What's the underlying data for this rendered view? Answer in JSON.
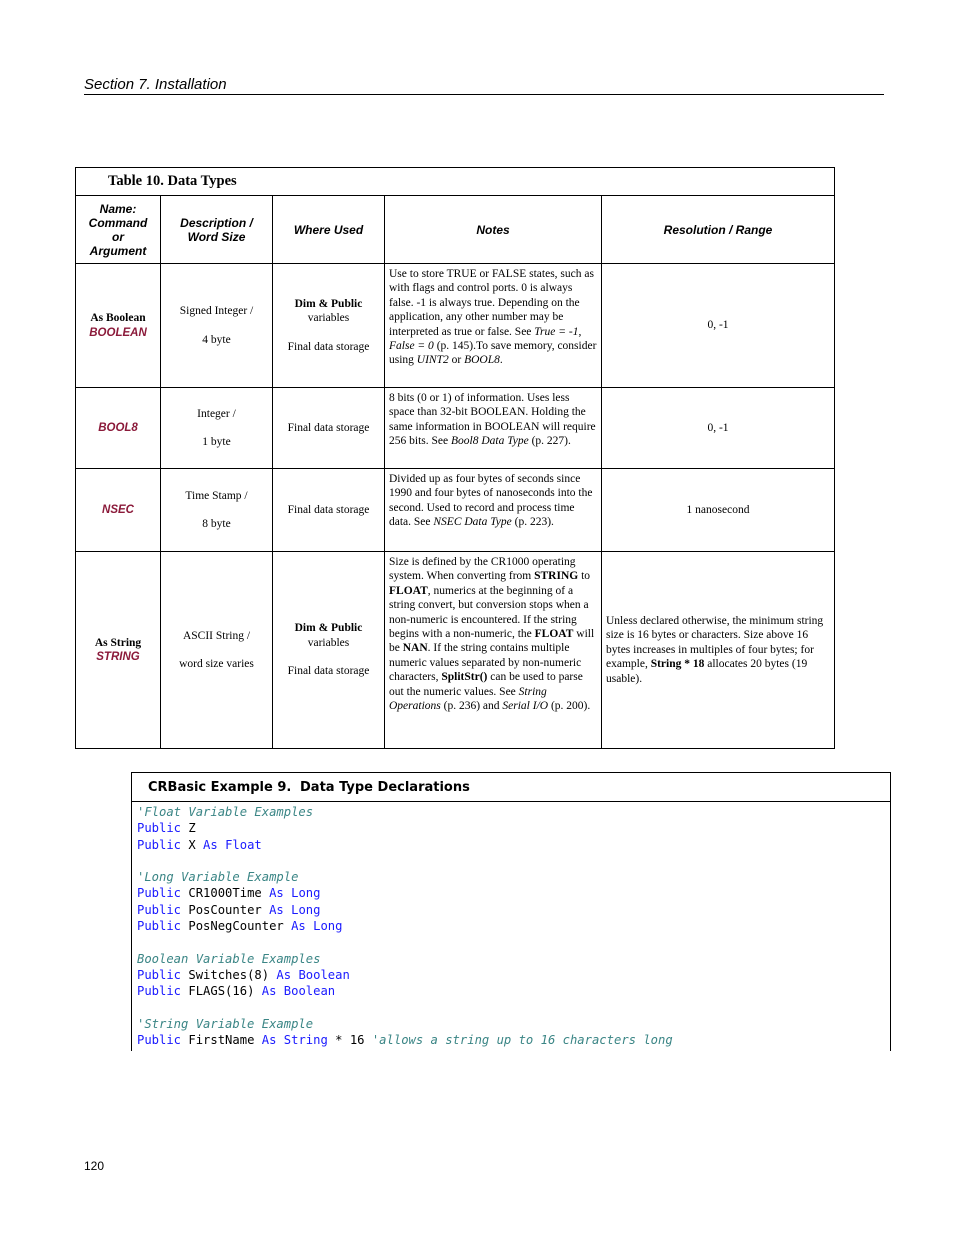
{
  "header": {
    "section": "Section 7.  Installation"
  },
  "table": {
    "title": "Table 10. Data Types",
    "columns": [
      "Name: Command or Argument",
      "Description / Word Size",
      "Where Used",
      "Notes",
      "Resolution / Range"
    ],
    "column_lines": [
      [
        "Name:",
        "Command",
        "or",
        "Argument"
      ],
      [
        "Description /",
        "Word Size"
      ]
    ],
    "rows": [
      {
        "name": "As Boolean",
        "keyword": "BOOLEAN",
        "desc1": "Signed Integer /",
        "desc2": "4 byte",
        "used_bold": "Dim & Public",
        "used_rest": "variables",
        "used2": "Final data storage",
        "notes": [
          {
            "t": "Use to store TRUE or FALSE states, such as with flags and control ports.  0 is always false.  -1 is always true.  Depending on the application, any other number may be interpreted as true or false.  See "
          },
          {
            "t": "True = -1, False = 0",
            "s": "i"
          },
          {
            "t": " (p. 145).To save memory, consider using "
          },
          {
            "t": "UINT2",
            "s": "i"
          },
          {
            "t": " or "
          },
          {
            "t": "BOOL8",
            "s": "i"
          },
          {
            "t": "."
          }
        ],
        "range": "0, -1"
      },
      {
        "keyword": "BOOL8",
        "desc1": "Integer /",
        "desc2": "1 byte",
        "used2": "Final data storage",
        "notes": [
          {
            "t": "8 bits (0 or 1) of information.  Uses less space than 32-bit BOOLEAN.  Holding the same information in BOOLEAN will require 256 bits.  See "
          },
          {
            "t": "Bool8 Data Type",
            "s": "i"
          },
          {
            "t": " (p. 227)."
          }
        ],
        "range": "0, -1"
      },
      {
        "keyword": "NSEC",
        "desc1": "Time Stamp /",
        "desc2": "8 byte",
        "used2": "Final data storage",
        "notes": [
          {
            "t": "Divided up as four bytes of seconds since 1990 and four bytes of nanoseconds into the second.  Used to record and process time data.  See "
          },
          {
            "t": "NSEC Data Type",
            "s": "i"
          },
          {
            "t": " (p. 223)."
          }
        ],
        "range": "1 nanosecond"
      },
      {
        "name": "As String",
        "keyword": "STRING",
        "desc1": "ASCII String /",
        "desc2": "word size varies",
        "used_bold": "Dim & Public",
        "used_rest": "variables",
        "used2": "Final data storage",
        "notes": [
          {
            "t": "Size is defined by the CR1000 operating system.  When converting from "
          },
          {
            "t": "STRING",
            "s": "b"
          },
          {
            "t": " to "
          },
          {
            "t": "FLOAT",
            "s": "b"
          },
          {
            "t": ", numerics at the beginning of a string convert, but conversion stops when a non-numeric is encountered.  If the string begins with a non-numeric, the "
          },
          {
            "t": "FLOAT",
            "s": "b"
          },
          {
            "t": " will be "
          },
          {
            "t": "NAN",
            "s": "b"
          },
          {
            "t": ".  If the string contains multiple numeric values separated by non-numeric characters, "
          },
          {
            "t": "SplitStr()",
            "s": "b"
          },
          {
            "t": " can be used to parse out the numeric values.  See "
          },
          {
            "t": "String Operations",
            "s": "i"
          },
          {
            "t": " (p. 236) and "
          },
          {
            "t": "Serial I/O",
            "s": "i"
          },
          {
            "t": " (p. 200)."
          }
        ],
        "range_segs": [
          {
            "t": "Unless declared otherwise, the minimum string size is 16 bytes or characters.  Size above 16 bytes increases in multiples of four bytes; for example, "
          },
          {
            "t": "String * 18",
            "s": "b"
          },
          {
            "t": " allocates 20 bytes (19 usable)."
          }
        ]
      }
    ]
  },
  "example": {
    "label": "CRBasic Example 9.",
    "title": "Data Type Declarations",
    "lines": [
      [
        {
          "t": "'Float Variable Examples",
          "c": "cm"
        }
      ],
      [
        {
          "t": "Public",
          "c": "k"
        },
        {
          "t": " Z"
        }
      ],
      [
        {
          "t": "Public",
          "c": "k"
        },
        {
          "t": " X "
        },
        {
          "t": "As",
          "c": "k"
        },
        {
          "t": " "
        },
        {
          "t": "Float",
          "c": "k"
        }
      ],
      [],
      [
        {
          "t": "'Long Variable Example",
          "c": "cm"
        }
      ],
      [
        {
          "t": "Public",
          "c": "k"
        },
        {
          "t": " CR1000Time "
        },
        {
          "t": "As",
          "c": "k"
        },
        {
          "t": " "
        },
        {
          "t": "Long",
          "c": "k"
        }
      ],
      [
        {
          "t": "Public",
          "c": "k"
        },
        {
          "t": " PosCounter "
        },
        {
          "t": "As",
          "c": "k"
        },
        {
          "t": " "
        },
        {
          "t": "Long",
          "c": "k"
        }
      ],
      [
        {
          "t": "Public",
          "c": "k"
        },
        {
          "t": " PosNegCounter "
        },
        {
          "t": "As",
          "c": "k"
        },
        {
          "t": " "
        },
        {
          "t": "Long",
          "c": "k"
        }
      ],
      [],
      [
        {
          "t": "Boolean Variable Examples",
          "c": "cm"
        }
      ],
      [
        {
          "t": "Public",
          "c": "k"
        },
        {
          "t": " Switches(8) "
        },
        {
          "t": "As",
          "c": "k"
        },
        {
          "t": " "
        },
        {
          "t": "Boolean",
          "c": "k"
        }
      ],
      [
        {
          "t": "Public",
          "c": "k"
        },
        {
          "t": " FLAGS(16) "
        },
        {
          "t": "As",
          "c": "k"
        },
        {
          "t": " "
        },
        {
          "t": "Boolean",
          "c": "k"
        }
      ],
      [],
      [
        {
          "t": "'String Variable Example",
          "c": "cm"
        }
      ],
      [
        {
          "t": "Public",
          "c": "k"
        },
        {
          "t": " FirstName "
        },
        {
          "t": "As",
          "c": "k"
        },
        {
          "t": " "
        },
        {
          "t": "String",
          "c": "k"
        },
        {
          "t": " * 16 "
        },
        {
          "t": "'allows a string up to 16 characters long",
          "c": "cm"
        }
      ]
    ]
  },
  "footer": {
    "page_number": "120"
  },
  "colors": {
    "keyword_red": "#8b1a3a",
    "code_keyword": "#1a1aff",
    "code_comment": "#3a8585"
  }
}
